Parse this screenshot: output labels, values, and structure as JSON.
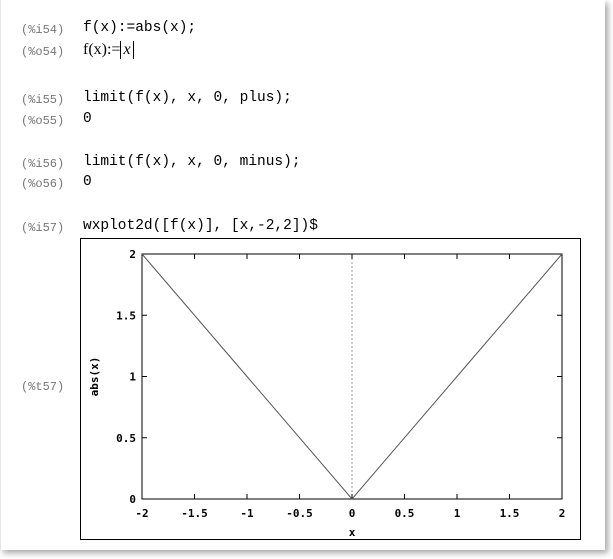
{
  "cells": [
    {
      "label": "(%i54)",
      "text": "f(x):=abs(x);"
    },
    {
      "label": "(%o54)",
      "text_prefix": "f(x):=",
      "abs_arg": "x"
    },
    {
      "label": "(%i55)",
      "text": "limit(f(x), x, 0, plus);"
    },
    {
      "label": "(%o55)",
      "text": "0"
    },
    {
      "label": "(%i56)",
      "text": "limit(f(x), x, 0, minus);"
    },
    {
      "label": "(%o56)",
      "text": "0"
    },
    {
      "label": "(%i57)",
      "text": "wxplot2d([f(x)], [x,-2,2])$"
    },
    {
      "label": "(%t57)"
    }
  ],
  "chart_data": {
    "type": "line",
    "xlabel": "x",
    "ylabel": "abs(x)",
    "xlim": [
      -2,
      2
    ],
    "ylim": [
      0,
      2
    ],
    "xticks": [
      "-2",
      "-1.5",
      "-1",
      "-0.5",
      "0",
      "0.5",
      "1",
      "1.5",
      "2"
    ],
    "yticks": [
      "0",
      "0.5",
      "1",
      "1.5",
      "2"
    ],
    "x_zero_axis": "dashed",
    "series": [
      {
        "x": [
          -2,
          -1,
          0,
          1,
          2
        ],
        "y": [
          2,
          1,
          0,
          1,
          2
        ],
        "color": "#555555"
      }
    ]
  }
}
